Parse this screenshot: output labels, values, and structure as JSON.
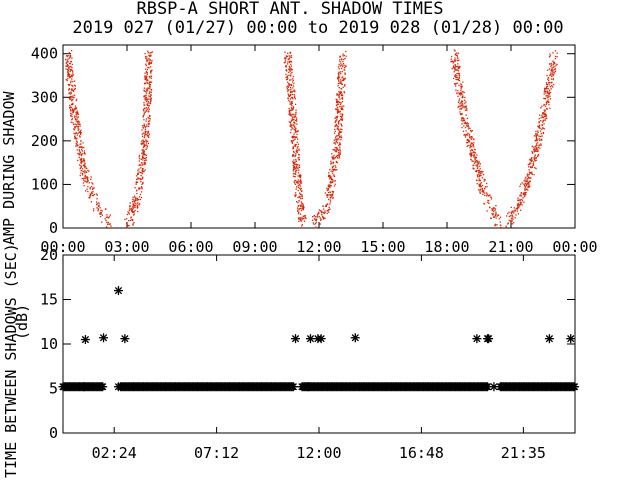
{
  "chart_data": [
    {
      "type": "scatter",
      "title": "RBSP-A SHORT ANT. SHADOW TIMES",
      "subtitle": "2019 027 (01/27) 00:00 to 2019 028 (01/28) 00:00",
      "ylabel": "AMP DURING SHADOW",
      "ylabel2": "(dB)",
      "x_tick_labels": [
        "00:00",
        "03:00",
        "06:00",
        "09:00",
        "12:00",
        "15:00",
        "18:00",
        "21:00",
        "00:00"
      ],
      "x_ticks_hours": [
        0,
        3,
        6,
        9,
        12,
        15,
        18,
        21,
        24
      ],
      "xlim_hours": [
        0,
        24
      ],
      "ylim": [
        0,
        420
      ],
      "y_tick_labels": [
        "0",
        "100",
        "200",
        "300",
        "400"
      ],
      "y_ticks": [
        0,
        100,
        200,
        300,
        400
      ],
      "point_color": "#dd2200",
      "arcs": [
        {
          "bottom_hour": 2.6,
          "values_hours_before": [
            [
              0.2,
              400
            ],
            [
              0.5,
              260
            ],
            [
              1.0,
              120
            ],
            [
              1.6,
              50
            ],
            [
              2.2,
              10
            ]
          ],
          "values_hours_after": [
            [
              3.0,
              10
            ],
            [
              3.4,
              60
            ],
            [
              3.7,
              150
            ],
            [
              3.9,
              250
            ],
            [
              4.0,
              400
            ]
          ]
        },
        {
          "bottom_hour": 11.6,
          "values_hours_before": [
            [
              10.5,
              400
            ],
            [
              10.8,
              230
            ],
            [
              11.0,
              80
            ],
            [
              11.2,
              10
            ]
          ],
          "values_hours_after": [
            [
              11.8,
              10
            ],
            [
              12.4,
              60
            ],
            [
              12.8,
              180
            ],
            [
              13.1,
              400
            ]
          ]
        },
        {
          "bottom_hour": 20.7,
          "values_hours_before": [
            [
              18.3,
              400
            ],
            [
              18.8,
              250
            ],
            [
              19.3,
              150
            ],
            [
              19.9,
              60
            ],
            [
              20.4,
              10
            ]
          ],
          "values_hours_after": [
            [
              20.8,
              10
            ],
            [
              21.4,
              60
            ],
            [
              22.0,
              150
            ],
            [
              22.6,
              280
            ],
            [
              23.0,
              400
            ]
          ]
        }
      ]
    },
    {
      "type": "scatter",
      "ylabel": "TIME BETWEEN SHADOWS (SEC)",
      "x_tick_labels": [
        "02:24",
        "07:12",
        "12:00",
        "16:48",
        "21:35"
      ],
      "x_ticks_hours": [
        2.4,
        7.2,
        12.0,
        16.8,
        21.58
      ],
      "xlim_hours": [
        0,
        24
      ],
      "ylim": [
        0,
        20
      ],
      "y_tick_labels": [
        "0",
        "5",
        "10",
        "15",
        "20"
      ],
      "y_ticks": [
        0,
        5,
        10,
        15,
        20
      ],
      "marker": "asterisk",
      "baseline_value": 5.2,
      "baseline_segments_hours": [
        [
          0,
          1.9
        ],
        [
          2.7,
          10.8
        ],
        [
          11.2,
          19.9
        ],
        [
          20.5,
          24
        ]
      ],
      "points": [
        {
          "x": 1.05,
          "y": 10.5
        },
        {
          "x": 1.9,
          "y": 10.7
        },
        {
          "x": 2.6,
          "y": 16.0
        },
        {
          "x": 2.9,
          "y": 10.6
        },
        {
          "x": 10.9,
          "y": 10.6
        },
        {
          "x": 11.6,
          "y": 10.6
        },
        {
          "x": 11.95,
          "y": 10.6
        },
        {
          "x": 12.1,
          "y": 10.6
        },
        {
          "x": 13.7,
          "y": 10.7
        },
        {
          "x": 19.4,
          "y": 10.6
        },
        {
          "x": 19.9,
          "y": 10.6
        },
        {
          "x": 19.95,
          "y": 10.6
        },
        {
          "x": 22.8,
          "y": 10.6
        },
        {
          "x": 23.8,
          "y": 10.6
        },
        {
          "x": 1.0,
          "y": 5.2
        },
        {
          "x": 2.6,
          "y": 5.2
        },
        {
          "x": 11.5,
          "y": 5.2
        },
        {
          "x": 20.2,
          "y": 5.2
        }
      ]
    }
  ]
}
